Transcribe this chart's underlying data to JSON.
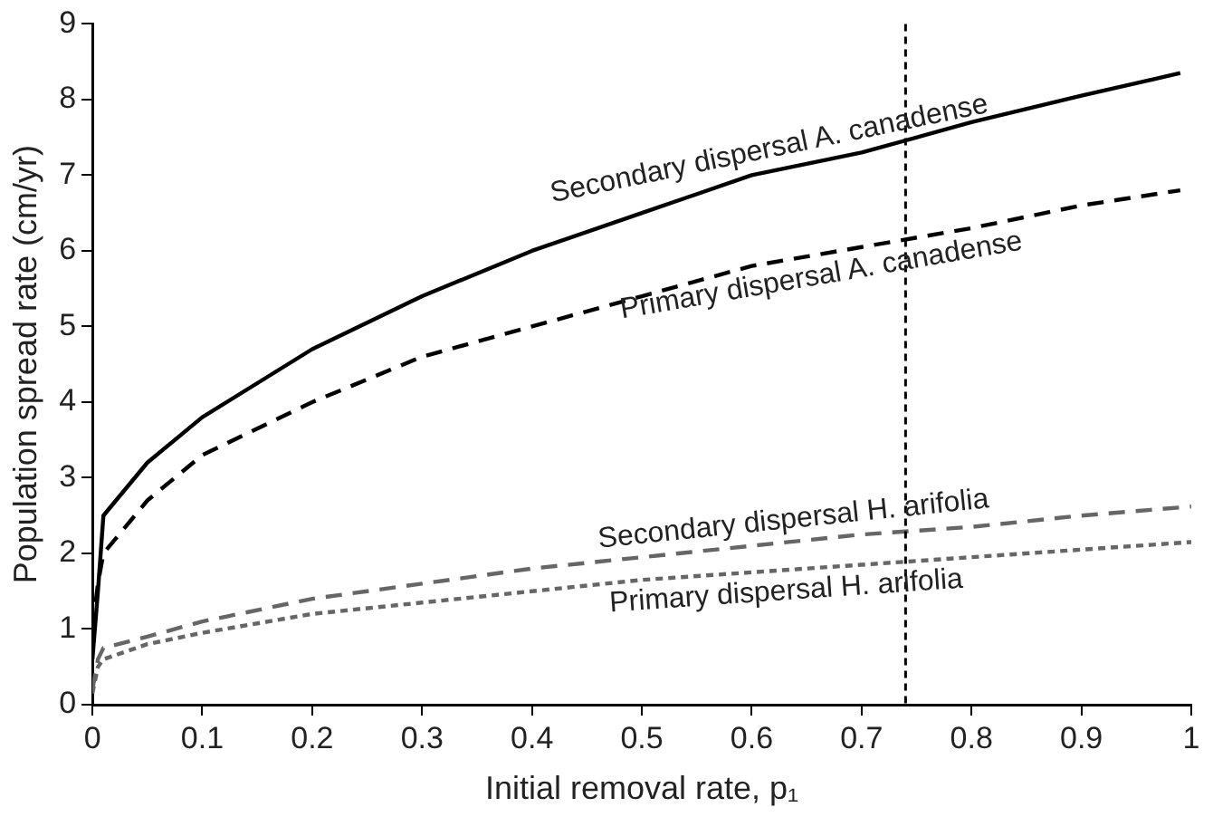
{
  "chart_data": {
    "type": "line",
    "xlabel": "Initial removal rate, p₁",
    "ylabel": "Population spread rate (cm/yr)",
    "xlim": [
      0,
      1
    ],
    "xticks": [
      0,
      0.1,
      0.2,
      0.3,
      0.4,
      0.5,
      0.6,
      0.7,
      0.8,
      0.9,
      1
    ],
    "ylim": [
      0,
      9
    ],
    "yticks": [
      0,
      1,
      2,
      3,
      4,
      5,
      6,
      7,
      8,
      9
    ],
    "grid": false,
    "legend": false,
    "marker": "none",
    "series": [
      {
        "name": "Secondary dispersal A. canadense",
        "color": "#000000",
        "line_style": "solid",
        "x": [
          0,
          0.005,
          0.01,
          0.05,
          0.1,
          0.2,
          0.3,
          0.4,
          0.5,
          0.6,
          0.7,
          0.8,
          0.9,
          0.99
        ],
        "values": [
          0.6,
          1.5,
          2.5,
          3.2,
          3.8,
          4.7,
          5.4,
          6.0,
          6.5,
          7.0,
          7.3,
          7.7,
          8.05,
          8.35
        ]
      },
      {
        "name": "Primary dispersal A. canadense",
        "color": "#000000",
        "line_style": "dashed",
        "x": [
          0,
          0.005,
          0.01,
          0.05,
          0.1,
          0.2,
          0.3,
          0.4,
          0.5,
          0.6,
          0.7,
          0.8,
          0.9,
          0.99
        ],
        "values": [
          1.0,
          1.6,
          2.0,
          2.7,
          3.3,
          4.0,
          4.6,
          5.0,
          5.4,
          5.8,
          6.05,
          6.3,
          6.6,
          6.8
        ]
      },
      {
        "name": "Secondary dispersal H. arifolia",
        "color": "#666666",
        "line_style": "dashed",
        "x": [
          0,
          0.005,
          0.01,
          0.05,
          0.1,
          0.2,
          0.3,
          0.4,
          0.5,
          0.6,
          0.7,
          0.8,
          0.9,
          1
        ],
        "values": [
          0.2,
          0.6,
          0.75,
          0.9,
          1.1,
          1.4,
          1.6,
          1.8,
          1.95,
          2.1,
          2.25,
          2.35,
          2.5,
          2.62
        ]
      },
      {
        "name": "Primary dispersal H. arifolia",
        "color": "#666666",
        "line_style": "dotted",
        "x": [
          0,
          0.005,
          0.01,
          0.05,
          0.1,
          0.2,
          0.3,
          0.4,
          0.5,
          0.6,
          0.7,
          0.8,
          0.9,
          1
        ],
        "values": [
          0.15,
          0.5,
          0.6,
          0.8,
          0.95,
          1.2,
          1.35,
          1.5,
          1.65,
          1.75,
          1.85,
          1.95,
          2.05,
          2.15
        ]
      }
    ],
    "ref_lines": [
      {
        "axis": "x",
        "value": 0.74,
        "line_style": "dotted",
        "color": "#000000"
      }
    ]
  }
}
